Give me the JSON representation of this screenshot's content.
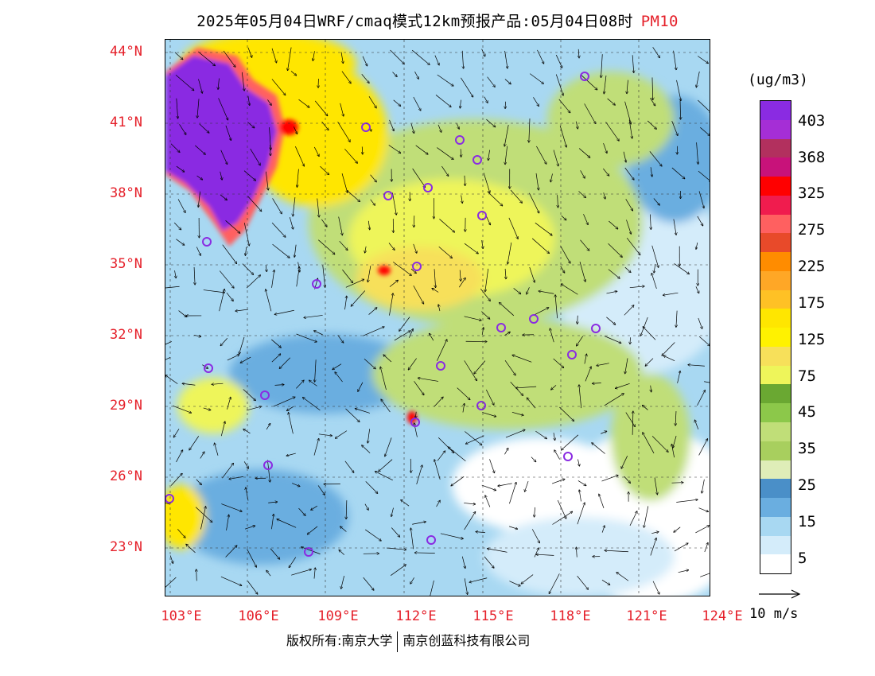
{
  "header": {
    "title": "2025年05月04日WRF/cmaq模式12km预报产品:05月04日08时",
    "pollutant": "PM10"
  },
  "map": {
    "lat_labels": [
      "44°N",
      "41°N",
      "38°N",
      "35°N",
      "32°N",
      "29°N",
      "26°N",
      "23°N"
    ],
    "lon_labels": [
      "103°E",
      "106°E",
      "109°E",
      "112°E",
      "115°E",
      "118°E",
      "121°E",
      "124°E"
    ],
    "station_markers": "purple-circle-icon"
  },
  "legend": {
    "unit": "(ug/m3)",
    "tick_labels": [
      "403",
      "368",
      "325",
      "275",
      "225",
      "175",
      "125",
      "75",
      "45",
      "35",
      "25",
      "15",
      "5"
    ],
    "colors_top_to_bottom": [
      "#8a2be2",
      "#a52ed6",
      "#b2305e",
      "#c8127a",
      "#ff0000",
      "#f01c4e",
      "#ff6060",
      "#e84a2a",
      "#ff8c00",
      "#ffa726",
      "#ffc125",
      "#ffe600",
      "#fff200",
      "#f7e05a",
      "#eef55a",
      "#6aa832",
      "#8cc84a",
      "#c0de78",
      "#a8cf5e",
      "#dfedb8",
      "#4a8fc8",
      "#6aaee0",
      "#a8d8f2",
      "#d4ecfa",
      "#ffffff"
    ]
  },
  "wind": {
    "reference_label": "10 m/s"
  },
  "footer": {
    "copyright_left": "版权所有:南京大学",
    "copyright_right": "南京创蓝科技有限公司"
  }
}
